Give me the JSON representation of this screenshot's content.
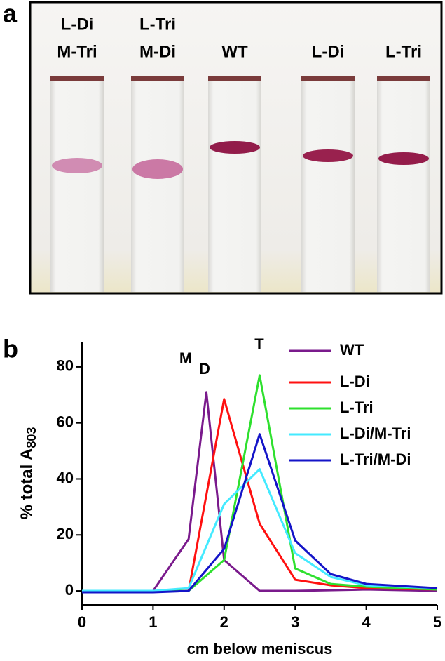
{
  "panel_a": {
    "label": "a",
    "tubes": [
      {
        "lines": [
          "L-Di",
          "M-Tri"
        ]
      },
      {
        "lines": [
          "L-Tri",
          "M-Di"
        ]
      },
      {
        "lines": [
          "WT"
        ]
      },
      {
        "lines": [
          "L-Di"
        ]
      },
      {
        "lines": [
          "L-Tri"
        ]
      }
    ]
  },
  "chart_data": {
    "type": "line",
    "panel_label": "b",
    "xlabel": "cm below meniscus",
    "ylabel": "% total A",
    "ylabel_subscript": "803",
    "annotations": [
      "M",
      "D",
      "T"
    ],
    "xlim": [
      0,
      5
    ],
    "xticks": [
      0,
      1,
      2,
      3,
      4,
      5
    ],
    "ylim": [
      -5,
      89
    ],
    "yticks": [
      0,
      20,
      40,
      60,
      80
    ],
    "series": [
      {
        "name": "WT",
        "color": "#7a1a8c",
        "x": [
          0,
          1,
          1.5,
          1.75,
          2,
          2.5,
          3,
          4,
          5
        ],
        "values": [
          0,
          0,
          18.5,
          71,
          11,
          0,
          0,
          0.5,
          0
        ]
      },
      {
        "name": "L-Di",
        "color": "#ff1010",
        "x": [
          0,
          1,
          1.5,
          2,
          2.5,
          3,
          3.5,
          4,
          5
        ],
        "values": [
          -0.5,
          0,
          0,
          68.5,
          24,
          4,
          2,
          1,
          0.5
        ]
      },
      {
        "name": "L-Tri",
        "color": "#2ee02e",
        "x": [
          0,
          1,
          1.5,
          2,
          2.5,
          3,
          3.5,
          4,
          5
        ],
        "values": [
          0,
          0,
          0,
          11,
          77,
          8,
          2.5,
          1.5,
          0.5
        ]
      },
      {
        "name": "L-Di/M-Tri",
        "color": "#44eaff",
        "x": [
          0,
          1,
          1.5,
          2,
          2.5,
          3,
          3.5,
          4,
          5
        ],
        "values": [
          0,
          0,
          1,
          31,
          43.5,
          13.5,
          5,
          2,
          1
        ]
      },
      {
        "name": "L-Tri/M-Di",
        "color": "#1414c8",
        "x": [
          0,
          1,
          1.5,
          2,
          2.5,
          3,
          3.5,
          4,
          5
        ],
        "values": [
          -0.5,
          -0.5,
          0,
          15,
          56,
          18,
          6,
          2.5,
          1
        ]
      }
    ]
  }
}
